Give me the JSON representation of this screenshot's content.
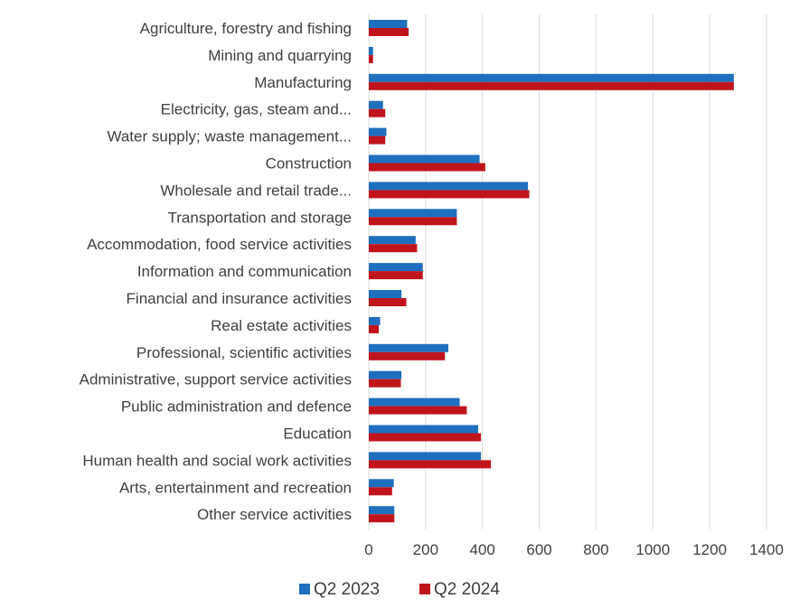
{
  "chart_data": {
    "type": "bar",
    "orientation": "horizontal",
    "categories": [
      "Agriculture, forestry and fishing",
      "Mining and quarrying",
      "Manufacturing",
      "Electricity, gas, steam and...",
      "Water supply; waste management...",
      "Construction",
      "Wholesale and retail trade...",
      "Transportation and storage",
      "Accommodation, food service activities",
      "Information and communication",
      "Financial and insurance activities",
      "Real estate activities",
      "Professional, scientific activities",
      "Administrative, support service activities",
      "Public administration and defence",
      "Education",
      "Human health and social work activities",
      "Arts, entertainment and recreation",
      "Other service activities"
    ],
    "series": [
      {
        "name": "Q2 2023",
        "color": "#1f6fbf",
        "values": [
          135,
          15,
          1285,
          50,
          62,
          390,
          560,
          310,
          165,
          190,
          115,
          40,
          280,
          115,
          320,
          385,
          395,
          88,
          90
        ]
      },
      {
        "name": "Q2 2024",
        "color": "#c0141c",
        "values": [
          140,
          15,
          1285,
          58,
          58,
          410,
          565,
          310,
          170,
          190,
          132,
          35,
          268,
          113,
          345,
          395,
          430,
          82,
          90
        ]
      }
    ],
    "xlim": [
      0,
      1400
    ],
    "xticks": [
      "0",
      "200",
      "400",
      "600",
      "800",
      "1000",
      "1200",
      "1400"
    ],
    "grid": "vertical",
    "legend_position": "bottom",
    "title": "",
    "xlabel": "",
    "ylabel": ""
  }
}
